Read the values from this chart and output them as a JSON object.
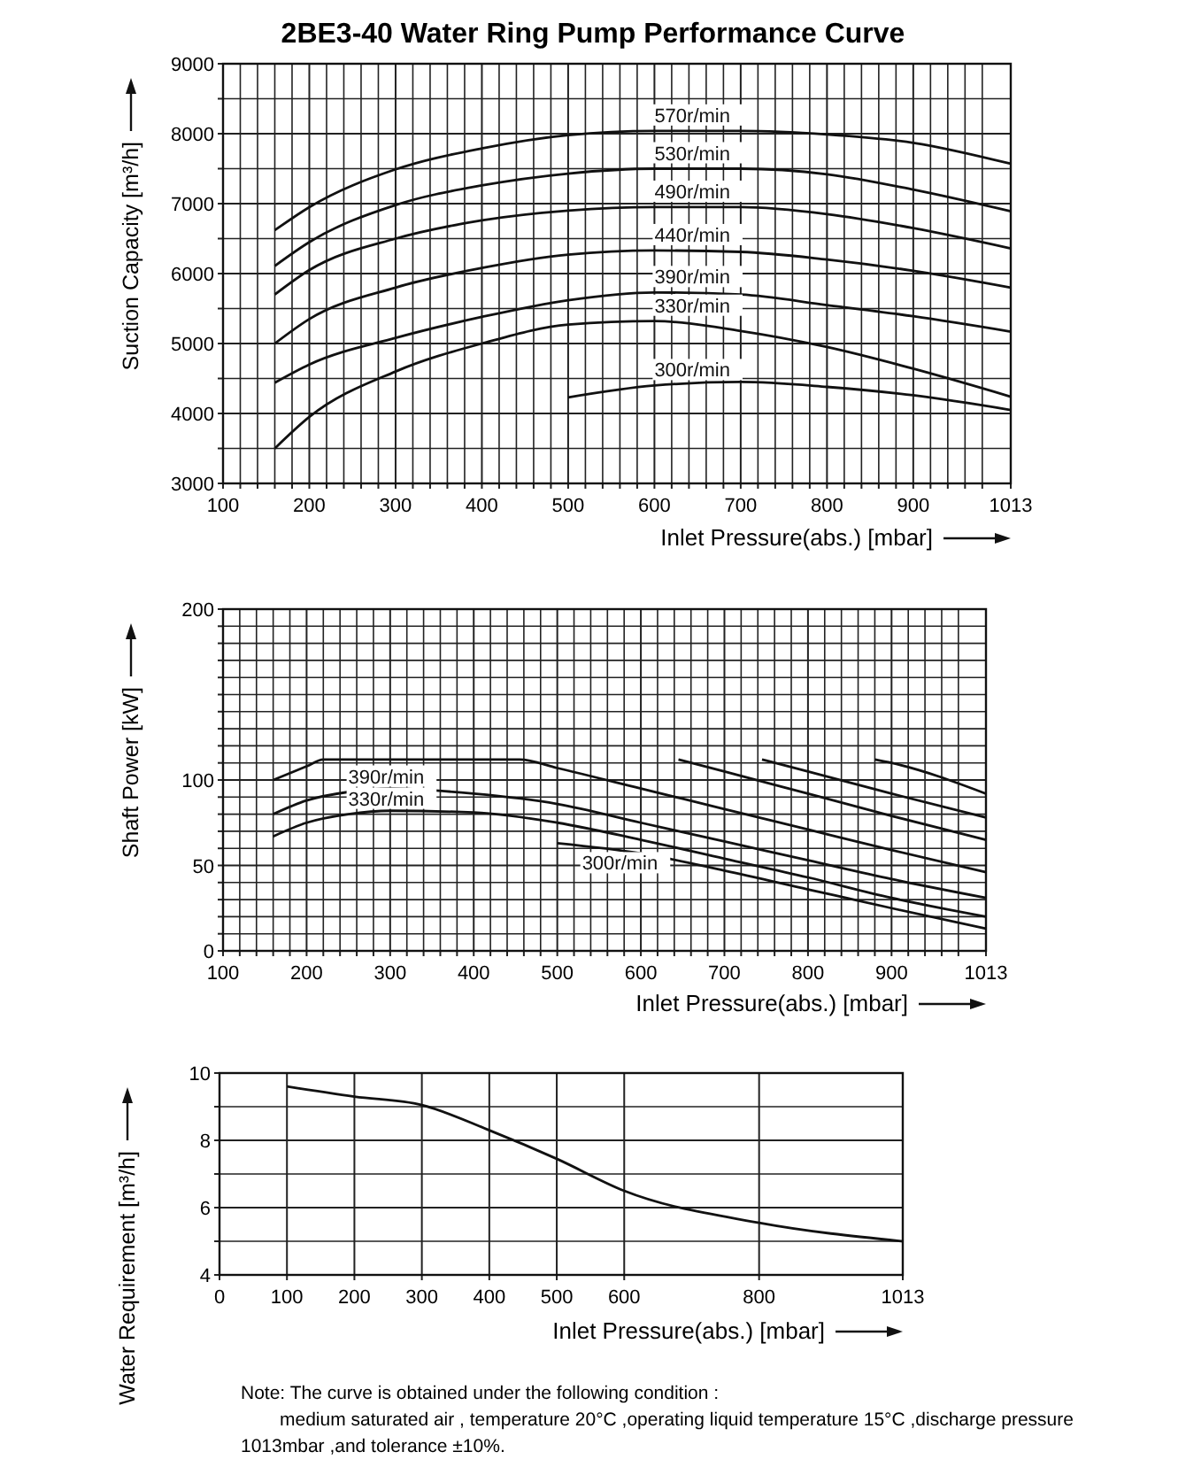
{
  "chart_data": [
    {
      "type": "line",
      "title": "2BE3-40 Water Ring Pump Performance Curve",
      "xlabel": "Inlet Pressure(abs.)  [mbar]",
      "ylabel": "Suction Capacity  [m³/h]",
      "xlim": [
        100,
        1013
      ],
      "ylim": [
        3000,
        9000
      ],
      "xticks": [
        100,
        {
          "value": 120,
          "label": null
        },
        {
          "value": 140,
          "label": null
        },
        {
          "value": 160,
          "label": null
        },
        {
          "value": 180,
          "label": null
        },
        200,
        {
          "value": 220,
          "label": null
        },
        {
          "value": 240,
          "label": null
        },
        {
          "value": 260,
          "label": null
        },
        {
          "value": 280,
          "label": null
        },
        300,
        {
          "value": 320,
          "label": null
        },
        {
          "value": 340,
          "label": null
        },
        {
          "value": 360,
          "label": null
        },
        {
          "value": 380,
          "label": null
        },
        400,
        {
          "value": 420,
          "label": null
        },
        {
          "value": 440,
          "label": null
        },
        {
          "value": 460,
          "label": null
        },
        {
          "value": 480,
          "label": null
        },
        500,
        {
          "value": 520,
          "label": null
        },
        {
          "value": 540,
          "label": null
        },
        {
          "value": 560,
          "label": null
        },
        {
          "value": 580,
          "label": null
        },
        600,
        {
          "value": 620,
          "label": null
        },
        {
          "value": 640,
          "label": null
        },
        {
          "value": 660,
          "label": null
        },
        {
          "value": 680,
          "label": null
        },
        700,
        {
          "value": 720,
          "label": null
        },
        {
          "value": 740,
          "label": null
        },
        {
          "value": 760,
          "label": null
        },
        {
          "value": 780,
          "label": null
        },
        800,
        {
          "value": 820,
          "label": null
        },
        {
          "value": 840,
          "label": null
        },
        {
          "value": 860,
          "label": null
        },
        {
          "value": 880,
          "label": null
        },
        900,
        {
          "value": 920,
          "label": null
        },
        {
          "value": 940,
          "label": null
        },
        {
          "value": 960,
          "label": null
        },
        {
          "value": 980,
          "label": null
        },
        1013
      ],
      "yticks": [
        3000,
        {
          "value": 3500,
          "label": null
        },
        4000,
        {
          "value": 4500,
          "label": null
        },
        5000,
        {
          "value": 5500,
          "label": null
        },
        6000,
        {
          "value": 6500,
          "label": null
        },
        7000,
        {
          "value": 7500,
          "label": null
        },
        8000,
        {
          "value": 8500,
          "label": null
        },
        9000
      ],
      "grid": true,
      "marker": "none",
      "line_style": "solid",
      "series": [
        {
          "name": "570r/min",
          "color": "#111111",
          "x": [
            160,
            200,
            300,
            400,
            500,
            600,
            700,
            800,
            900,
            1013
          ],
          "values": [
            6620,
            6950,
            7490,
            7790,
            7980,
            8040,
            8040,
            7990,
            7870,
            7570
          ]
        },
        {
          "name": "530r/min",
          "color": "#111111",
          "x": [
            160,
            200,
            300,
            400,
            500,
            600,
            700,
            800,
            900,
            1013
          ],
          "values": [
            6110,
            6450,
            6980,
            7260,
            7430,
            7500,
            7500,
            7420,
            7200,
            6890
          ]
        },
        {
          "name": "490r/min",
          "color": "#111111",
          "x": [
            160,
            200,
            300,
            400,
            500,
            600,
            700,
            800,
            900,
            1013
          ],
          "values": [
            5700,
            6050,
            6500,
            6760,
            6900,
            6950,
            6950,
            6850,
            6650,
            6360
          ]
        },
        {
          "name": "440r/min",
          "color": "#111111",
          "x": [
            160,
            200,
            300,
            400,
            500,
            600,
            700,
            800,
            900,
            1013
          ],
          "values": [
            5000,
            5350,
            5800,
            6080,
            6270,
            6330,
            6310,
            6200,
            6040,
            5800
          ]
        },
        {
          "name": "390r/min",
          "color": "#111111",
          "x": [
            160,
            200,
            300,
            400,
            500,
            600,
            700,
            800,
            900,
            1013
          ],
          "values": [
            4440,
            4700,
            5080,
            5380,
            5620,
            5730,
            5700,
            5550,
            5390,
            5170
          ]
        },
        {
          "name": "330r/min",
          "color": "#111111",
          "x": [
            160,
            200,
            300,
            400,
            500,
            600,
            700,
            800,
            900,
            1013
          ],
          "values": [
            3500,
            3950,
            4600,
            5000,
            5270,
            5320,
            5180,
            4950,
            4640,
            4240
          ]
        },
        {
          "name": "300r/min",
          "color": "#111111",
          "x": [
            500,
            600,
            700,
            800,
            900,
            1013
          ],
          "values": [
            4230,
            4400,
            4450,
            4380,
            4260,
            4050
          ]
        }
      ]
    },
    {
      "type": "line",
      "xlabel": "Inlet Pressure(abs.)  [mbar]",
      "ylabel": "Shaft Power [kW]",
      "xlim": [
        100,
        1013
      ],
      "ylim": [
        0,
        200
      ],
      "xticks": [
        100,
        {
          "value": 120,
          "label": null
        },
        {
          "value": 140,
          "label": null
        },
        {
          "value": 160,
          "label": null
        },
        {
          "value": 180,
          "label": null
        },
        200,
        {
          "value": 220,
          "label": null
        },
        {
          "value": 240,
          "label": null
        },
        {
          "value": 260,
          "label": null
        },
        {
          "value": 280,
          "label": null
        },
        300,
        {
          "value": 320,
          "label": null
        },
        {
          "value": 340,
          "label": null
        },
        {
          "value": 360,
          "label": null
        },
        {
          "value": 380,
          "label": null
        },
        400,
        {
          "value": 420,
          "label": null
        },
        {
          "value": 440,
          "label": null
        },
        {
          "value": 460,
          "label": null
        },
        {
          "value": 480,
          "label": null
        },
        500,
        {
          "value": 520,
          "label": null
        },
        {
          "value": 540,
          "label": null
        },
        {
          "value": 560,
          "label": null
        },
        {
          "value": 580,
          "label": null
        },
        600,
        {
          "value": 620,
          "label": null
        },
        {
          "value": 640,
          "label": null
        },
        {
          "value": 660,
          "label": null
        },
        {
          "value": 680,
          "label": null
        },
        700,
        {
          "value": 720,
          "label": null
        },
        {
          "value": 740,
          "label": null
        },
        {
          "value": 760,
          "label": null
        },
        {
          "value": 780,
          "label": null
        },
        800,
        {
          "value": 820,
          "label": null
        },
        {
          "value": 840,
          "label": null
        },
        {
          "value": 860,
          "label": null
        },
        {
          "value": 880,
          "label": null
        },
        900,
        {
          "value": 920,
          "label": null
        },
        {
          "value": 940,
          "label": null
        },
        {
          "value": 960,
          "label": null
        },
        {
          "value": 980,
          "label": null
        },
        1013
      ],
      "yticks": [
        0,
        {
          "value": 10,
          "label": null
        },
        {
          "value": 20,
          "label": null
        },
        {
          "value": 30,
          "label": null
        },
        {
          "value": 40,
          "label": null
        },
        50,
        {
          "value": 60,
          "label": null
        },
        {
          "value": 70,
          "label": null
        },
        {
          "value": 80,
          "label": null
        },
        {
          "value": 90,
          "label": null
        },
        100,
        {
          "value": 110,
          "label": null
        },
        {
          "value": 120,
          "label": null
        },
        {
          "value": 130,
          "label": null
        },
        {
          "value": 140,
          "label": null
        },
        {
          "value": 150,
          "label": null
        },
        {
          "value": 160,
          "label": null
        },
        {
          "value": 170,
          "label": null
        },
        {
          "value": 180,
          "label": null
        },
        {
          "value": 190,
          "label": null
        },
        200
      ],
      "grid": true,
      "marker": "none",
      "line_style": "solid",
      "series": [
        {
          "color": "#111111",
          "x": [
            880,
            900,
            1013
          ],
          "values": [
            112,
            110,
            92
          ]
        },
        {
          "color": "#111111",
          "x": [
            745,
            800,
            900,
            1013
          ],
          "values": [
            112,
            105,
            92,
            78
          ]
        },
        {
          "color": "#111111",
          "x": [
            645,
            700,
            800,
            900,
            1013
          ],
          "values": [
            112,
            105,
            92,
            79,
            65
          ]
        },
        {
          "color": "#111111",
          "x": [
            160,
            200,
            220,
            455,
            500,
            600,
            700,
            800,
            900,
            1013
          ],
          "values": [
            100,
            108,
            112,
            112,
            107,
            95,
            83,
            71,
            59,
            46
          ]
        },
        {
          "name": "390r/min",
          "color": "#111111",
          "x": [
            160,
            200,
            250,
            300,
            400,
            500,
            600,
            700,
            800,
            900,
            1013
          ],
          "values": [
            80,
            88,
            93,
            95,
            92,
            86,
            75,
            64,
            53,
            42,
            31
          ]
        },
        {
          "name": "330r/min",
          "color": "#111111",
          "x": [
            160,
            200,
            250,
            300,
            400,
            500,
            600,
            700,
            800,
            900,
            1013
          ],
          "values": [
            67,
            75,
            80,
            82,
            81,
            75,
            65,
            54,
            43,
            31,
            20
          ]
        },
        {
          "name": "300r/min",
          "color": "#111111",
          "x": [
            500,
            600,
            700,
            800,
            900,
            1013
          ],
          "values": [
            63,
            57,
            47,
            36,
            25,
            13
          ]
        }
      ]
    },
    {
      "type": "line",
      "xlabel": "Inlet Pressure(abs.)  [mbar]",
      "ylabel": "Water Requirement [m³/h]",
      "xlim": [
        0,
        1013
      ],
      "ylim": [
        4,
        10
      ],
      "xticks": [
        0,
        100,
        200,
        300,
        400,
        500,
        600,
        800,
        1013
      ],
      "yticks": [
        4,
        {
          "value": 5,
          "label": null
        },
        6,
        {
          "value": 7,
          "label": null
        },
        8,
        {
          "value": 9,
          "label": null
        },
        10
      ],
      "grid": true,
      "marker": "none",
      "line_style": "solid",
      "series": [
        {
          "color": "#111111",
          "x": [
            100,
            200,
            300,
            400,
            500,
            600,
            800,
            1013
          ],
          "values": [
            9.6,
            9.3,
            9.05,
            8.3,
            7.45,
            6.5,
            5.55,
            5.0
          ]
        }
      ],
      "annotations": [
        "Note: The curve is obtained under the following condition :",
        "medium saturated air , temperature 20°C ,operating liquid temperature 15°C ,discharge pressure",
        "1013mbar ,and tolerance ±10%."
      ]
    }
  ]
}
